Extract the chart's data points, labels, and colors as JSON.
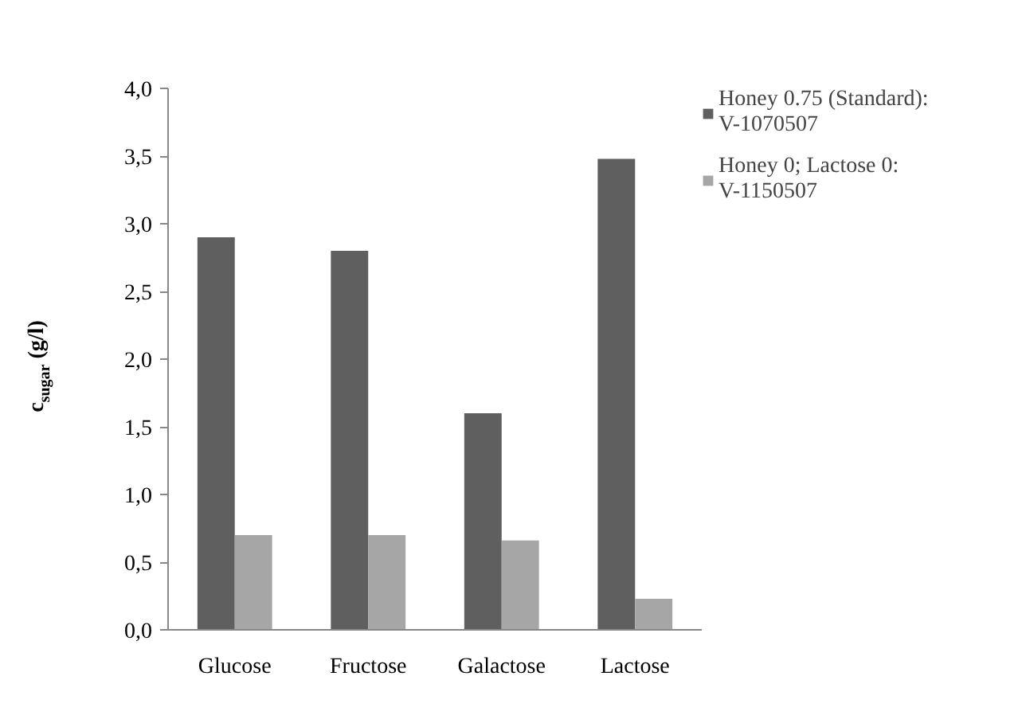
{
  "chart_data": {
    "type": "bar",
    "ylabel": "c$_{sugar}$ (g/l)",
    "categories": [
      "Glucose",
      "Fructose",
      "Galactose",
      "Lactose"
    ],
    "series": [
      {
        "name": "Honey 0.75 (Standard): V-1070507",
        "color": "#5f5f5f",
        "values": [
          2.9,
          2.8,
          1.6,
          3.48
        ]
      },
      {
        "name": "Honey 0; Lactose 0: V-1150507",
        "color": "#a6a6a6",
        "values": [
          0.7,
          0.7,
          0.66,
          0.23
        ]
      }
    ],
    "ylim": [
      0,
      4.0
    ],
    "yticks": [
      {
        "value": 0,
        "label": "0,0"
      },
      {
        "value": 0.5,
        "label": "0,5"
      },
      {
        "value": 1.0,
        "label": "1,0"
      },
      {
        "value": 1.5,
        "label": "1,5"
      },
      {
        "value": 2.0,
        "label": "2,0"
      },
      {
        "value": 2.5,
        "label": "2,5"
      },
      {
        "value": 3.0,
        "label": "3,0"
      },
      {
        "value": 3.5,
        "label": "3,5"
      },
      {
        "value": 4.0,
        "label": "4,0"
      }
    ],
    "grid": false,
    "legend": "top right"
  }
}
